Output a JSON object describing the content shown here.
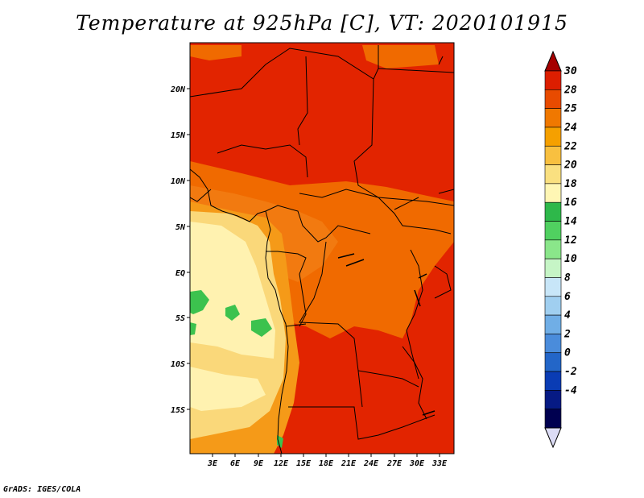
{
  "title": "Temperature at 925hPa [C], VT: 2020101915",
  "credit": "GrADS: IGES/COLA",
  "map": {
    "lat_labels": [
      "20N",
      "15N",
      "10N",
      "5N",
      "EQ",
      "5S",
      "10S",
      "15S"
    ],
    "lon_labels": [
      "3E",
      "6E",
      "9E",
      "12E",
      "15E",
      "18E",
      "21E",
      "24E",
      "27E",
      "30E",
      "33E"
    ]
  },
  "colorbar": {
    "levels": [
      "30",
      "28",
      "25",
      "24",
      "22",
      "20",
      "18",
      "16",
      "14",
      "12",
      "10",
      "8",
      "6",
      "4",
      "2",
      "0",
      "-2",
      "-4"
    ],
    "colors": [
      "#a50000",
      "#dc1e00",
      "#e84b00",
      "#f07800",
      "#f5a000",
      "#f8c040",
      "#fae080",
      "#fff6b4",
      "#2eb84a",
      "#50d060",
      "#8ae68a",
      "#c6f5c6",
      "#c8e6f8",
      "#a0cff0",
      "#70aee6",
      "#4a8cdb",
      "#2366c8",
      "#0a3cb4",
      "#061a84",
      "#000050",
      "#dcdcf5"
    ]
  },
  "colors": {
    "hot": "#e22400",
    "warm": "#f06a00",
    "orange": "#f59a18",
    "yellow": "#fad87a",
    "pale": "#fff2b0",
    "green": "#3cc24e"
  }
}
